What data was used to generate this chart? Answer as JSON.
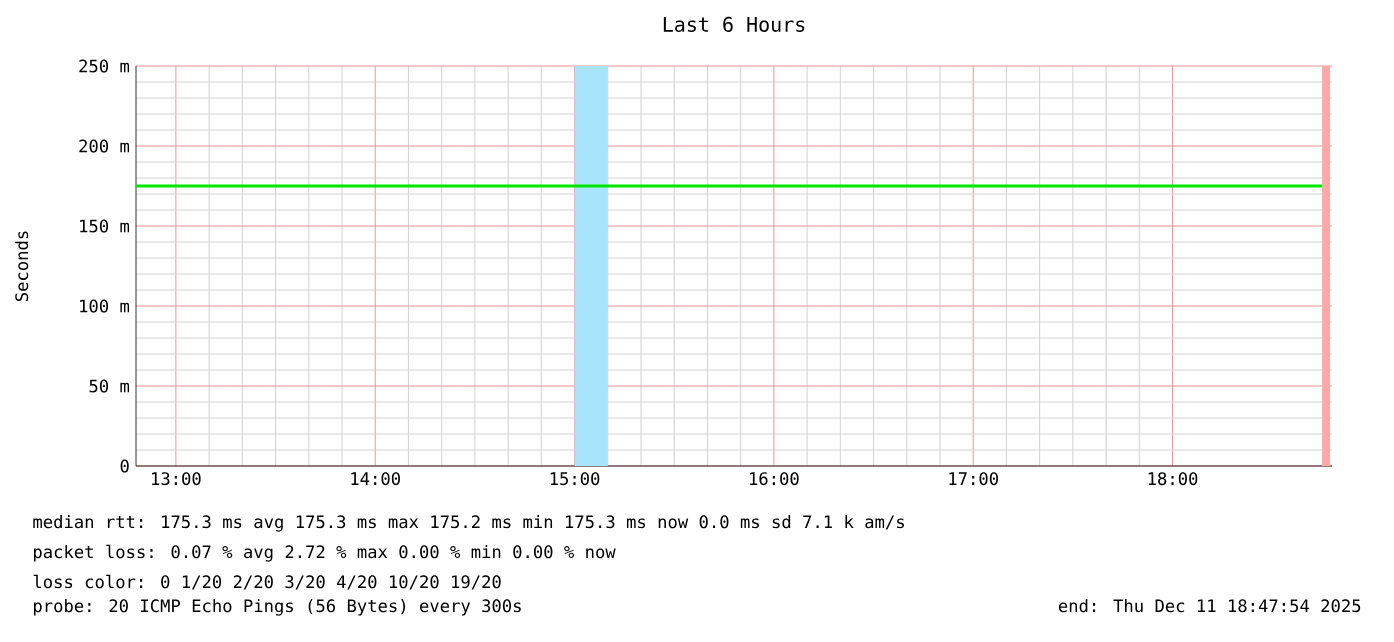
{
  "chart_data": {
    "type": "line",
    "title": "Last 6 Hours",
    "ylabel": "Seconds",
    "x": [
      12.8,
      18.75
    ],
    "series": [
      {
        "color": "#00e800",
        "values": [
          175,
          175
        ]
      }
    ],
    "xlim": [
      12.8,
      18.8
    ],
    "ylim": [
      0,
      250
    ],
    "xticks": [
      {
        "value": 13,
        "label": "13:00"
      },
      {
        "value": 14,
        "label": "14:00"
      },
      {
        "value": 15,
        "label": "15:00"
      },
      {
        "value": 16,
        "label": "16:00"
      },
      {
        "value": 17,
        "label": "17:00"
      },
      {
        "value": 18,
        "label": "18:00"
      }
    ],
    "yticks": [
      0,
      {
        "value": 50,
        "label": "50 m"
      },
      {
        "value": 100,
        "label": "100 m"
      },
      {
        "value": 150,
        "label": "150 m"
      },
      {
        "value": 200,
        "label": "200 m"
      },
      {
        "value": 250,
        "label": "250 m"
      }
    ],
    "grid": true,
    "line_style": "solid",
    "bands": [
      {
        "axis": "x",
        "from": 15.0,
        "to": 15.167,
        "color": "#a8e4fc"
      },
      {
        "axis": "x",
        "from": 18.75,
        "to": 18.79,
        "color": "#ffa8a8"
      }
    ],
    "annotations": [
      "median rtt:  175.3 ms avg  175.3 ms max  175.2 ms min  175.3 ms now  0.0 ms sd  7.1 k am/s",
      "packet loss: 0.07 % avg  2.72 % max  0.00 % min  0.00 % now",
      "loss color:  0  1/20  2/20  3/20  4/20  10/20  19/20",
      "probe:       20 ICMP Echo Pings (56 Bytes) every 300s",
      "end: Thu Dec 11 18:47:54 2025"
    ]
  }
}
